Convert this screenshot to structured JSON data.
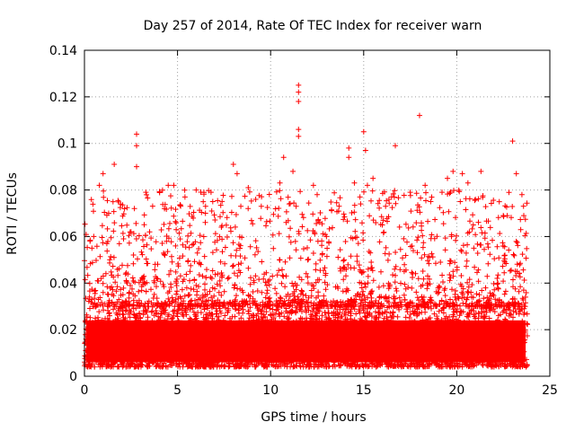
{
  "chart_data": {
    "type": "scatter",
    "title": "Day 257 of 2014, Rate Of TEC Index for receiver warn",
    "xlabel": "GPS time / hours",
    "ylabel": "ROTI / TECUs",
    "xlim": [
      0,
      25
    ],
    "ylim": [
      0,
      0.14
    ],
    "x_ticks": [
      0,
      5,
      10,
      15,
      20,
      25
    ],
    "x_tick_labels": [
      "0",
      "5",
      "10",
      "15",
      "20",
      "25"
    ],
    "y_ticks": [
      0,
      0.02,
      0.04,
      0.06,
      0.08,
      0.1,
      0.12,
      0.14
    ],
    "y_tick_labels": [
      "0",
      "0.02",
      "0.04",
      "0.06",
      "0.08",
      "0.1",
      "0.12",
      "0.14"
    ],
    "grid": true,
    "marker": "plus",
    "color": "#ff0000",
    "series": [
      {
        "name": "ROTI",
        "points": [
          [
            0.3,
            0.058
          ],
          [
            0.4,
            0.055
          ],
          [
            0.5,
            0.06
          ],
          [
            0.8,
            0.082
          ],
          [
            1.0,
            0.087
          ],
          [
            1.3,
            0.07
          ],
          [
            1.6,
            0.091
          ],
          [
            2.1,
            0.059
          ],
          [
            2.5,
            0.062
          ],
          [
            2.8,
            0.104
          ],
          [
            2.8,
            0.099
          ],
          [
            2.8,
            0.09
          ],
          [
            3.3,
            0.079
          ],
          [
            3.5,
            0.062
          ],
          [
            4.3,
            0.072
          ],
          [
            4.5,
            0.082
          ],
          [
            4.8,
            0.082
          ],
          [
            5.4,
            0.077
          ],
          [
            6.0,
            0.08
          ],
          [
            6.5,
            0.07
          ],
          [
            6.8,
            0.079
          ],
          [
            8.0,
            0.091
          ],
          [
            8.2,
            0.087
          ],
          [
            8.4,
            0.073
          ],
          [
            8.8,
            0.081
          ],
          [
            9.2,
            0.076
          ],
          [
            9.5,
            0.073
          ],
          [
            10.5,
            0.083
          ],
          [
            10.7,
            0.094
          ],
          [
            11.0,
            0.074
          ],
          [
            11.2,
            0.088
          ],
          [
            11.5,
            0.125
          ],
          [
            11.5,
            0.122
          ],
          [
            11.5,
            0.118
          ],
          [
            11.5,
            0.106
          ],
          [
            11.5,
            0.103
          ],
          [
            12.3,
            0.082
          ],
          [
            12.5,
            0.078
          ],
          [
            13.0,
            0.06
          ],
          [
            14.2,
            0.098
          ],
          [
            14.2,
            0.094
          ],
          [
            14.5,
            0.083
          ],
          [
            14.8,
            0.077
          ],
          [
            15.0,
            0.105
          ],
          [
            15.1,
            0.097
          ],
          [
            15.2,
            0.082
          ],
          [
            15.5,
            0.085
          ],
          [
            16.0,
            0.065
          ],
          [
            16.5,
            0.077
          ],
          [
            16.7,
            0.099
          ],
          [
            17.5,
            0.079
          ],
          [
            18.0,
            0.112
          ],
          [
            18.3,
            0.082
          ],
          [
            18.6,
            0.075
          ],
          [
            19.5,
            0.085
          ],
          [
            19.8,
            0.088
          ],
          [
            20.3,
            0.087
          ],
          [
            20.6,
            0.083
          ],
          [
            21.0,
            0.076
          ],
          [
            21.3,
            0.088
          ],
          [
            22.5,
            0.069
          ],
          [
            23.0,
            0.101
          ],
          [
            23.2,
            0.087
          ],
          [
            23.5,
            0.078
          ],
          [
            23.6,
            0.069
          ]
        ],
        "dense_band": {
          "x_range": [
            0,
            23.8
          ],
          "y_range": [
            0.004,
            0.032
          ],
          "note": "thousands of points forming a solid red band along the bottom"
        }
      }
    ]
  }
}
